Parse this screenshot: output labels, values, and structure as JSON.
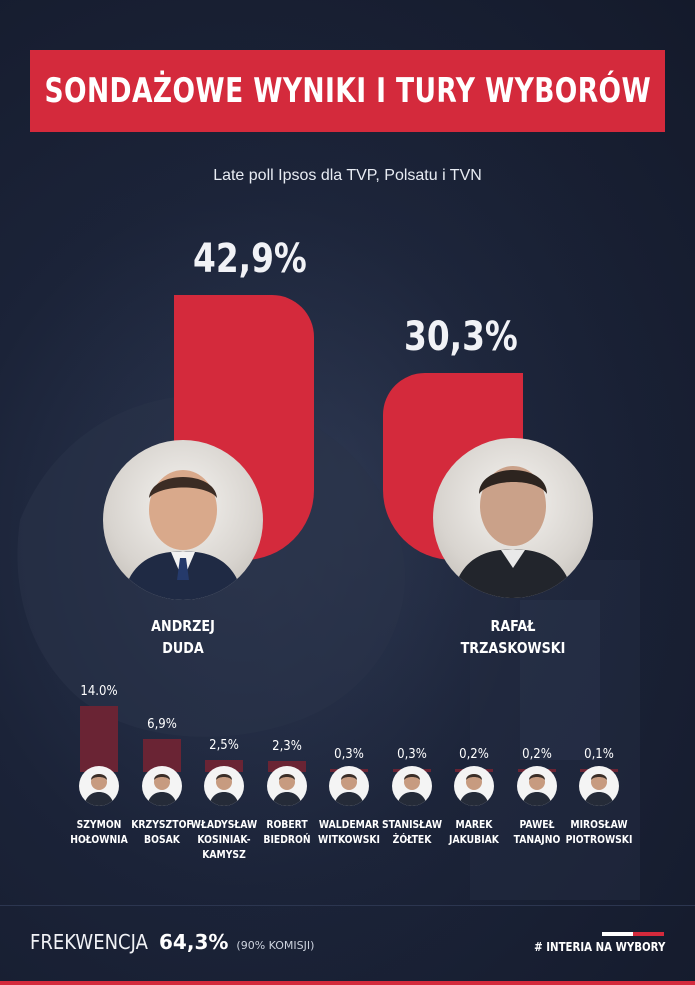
{
  "header": {
    "title": "SONDAŻOWE WYNIKI I TURY WYBORÓW",
    "subtitle": "Late poll Ipsos dla TVP, Polsatu i TVN"
  },
  "colors": {
    "accent": "#d42a3c",
    "bar_muted": "#6a2434",
    "background": "#1b2338"
  },
  "chart_data": {
    "type": "bar",
    "title": "SONDAŻOWE WYNIKI I TURY WYBORÓW",
    "subtitle": "Late poll Ipsos dla TVP, Polsatu i TVN",
    "unit": "%",
    "ylim": [
      0,
      45
    ],
    "categories": [
      "ANDRZEJ DUDA",
      "RAFAŁ TRZASKOWSKI",
      "SZYMON HOŁOWNIA",
      "KRZYSZTOF BOSAK",
      "WŁADYSŁAW KOSINIAK-KAMYSZ",
      "ROBERT BIEDROŃ",
      "WALDEMAR WITKOWSKI",
      "STANISŁAW ŻÓŁTEK",
      "MAREK JAKUBIAK",
      "PAWEŁ TANAJNO",
      "MIROSŁAW PIOTROWSKI"
    ],
    "values": [
      42.9,
      30.3,
      14.0,
      6.9,
      2.5,
      2.3,
      0.3,
      0.3,
      0.2,
      0.2,
      0.1
    ]
  },
  "leaders": [
    {
      "name_line1": "ANDRZEJ",
      "name_line2": "DUDA",
      "value": 42.9,
      "value_label": "42,9%",
      "icon": "portrait-icon"
    },
    {
      "name_line1": "RAFAŁ",
      "name_line2": "TRZASKOWSKI",
      "value": 30.3,
      "value_label": "30,3%",
      "icon": "portrait-icon"
    }
  ],
  "others": [
    {
      "name_line1": "SZYMON",
      "name_line2": "HOŁOWNIA",
      "name_line3": "",
      "value": 14.0,
      "value_label": "14.0%"
    },
    {
      "name_line1": "KRZYSZTOF",
      "name_line2": "BOSAK",
      "name_line3": "",
      "value": 6.9,
      "value_label": "6,9%"
    },
    {
      "name_line1": "WŁADYSŁAW",
      "name_line2": "KOSINIAK-",
      "name_line3": "KAMYSZ",
      "value": 2.5,
      "value_label": "2,5%"
    },
    {
      "name_line1": "ROBERT",
      "name_line2": "BIEDROŃ",
      "name_line3": "",
      "value": 2.3,
      "value_label": "2,3%"
    },
    {
      "name_line1": "WALDEMAR",
      "name_line2": "WITKOWSKI",
      "name_line3": "",
      "value": 0.3,
      "value_label": "0,3%"
    },
    {
      "name_line1": "STANISŁAW",
      "name_line2": "ŻÓŁTEK",
      "name_line3": "",
      "value": 0.3,
      "value_label": "0,3%"
    },
    {
      "name_line1": "MAREK",
      "name_line2": "JAKUBIAK",
      "name_line3": "",
      "value": 0.2,
      "value_label": "0,2%"
    },
    {
      "name_line1": "PAWEŁ",
      "name_line2": "TANAJNO",
      "name_line3": "",
      "value": 0.2,
      "value_label": "0,2%"
    },
    {
      "name_line1": "MIROSŁAW",
      "name_line2": "PIOTROWSKI",
      "name_line3": "",
      "value": 0.1,
      "value_label": "0,1%"
    }
  ],
  "footer": {
    "turnout_label": "FREKWENCJA",
    "turnout_value": "64,3%",
    "turnout_note": "(90% KOMISJI)",
    "brand": "# INTERIA NA WYBORY"
  }
}
